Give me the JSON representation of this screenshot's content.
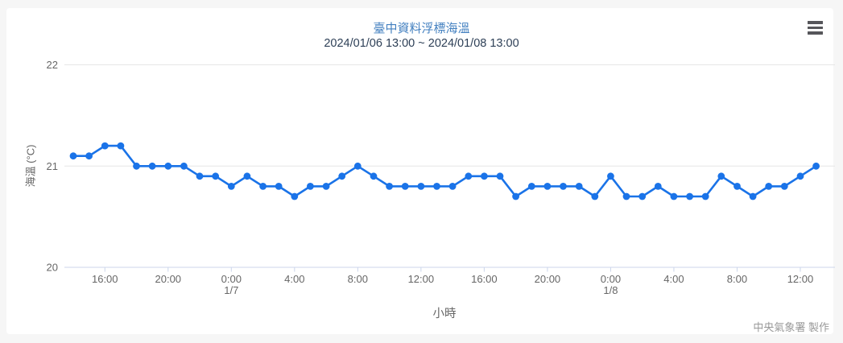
{
  "credits": "中央氣象署 製作",
  "colors": {
    "title": "#4380c0",
    "subtitle": "#2e4057",
    "line": "#1a73e8",
    "grid": "#e6e6e6",
    "axis_line": "#ccd6eb",
    "tick_label": "#666666",
    "credits_text": "#999999"
  },
  "icons": {
    "menu": "hamburger-icon"
  },
  "chart_data": {
    "type": "line",
    "title": "臺中資料浮標海溫",
    "subtitle": "2024/01/06 13:00 ~ 2024/01/08 13:00",
    "xlabel": "小時",
    "ylabel": "海溫 (°C)",
    "ylim": [
      20,
      22
    ],
    "yticks": [
      20,
      21,
      22
    ],
    "grid": true,
    "legend": "none",
    "line_color": "#1a73e8",
    "categories": [
      "1/6 14:00",
      "1/6 15:00",
      "1/6 16:00",
      "1/6 17:00",
      "1/6 18:00",
      "1/6 19:00",
      "1/6 20:00",
      "1/6 21:00",
      "1/6 22:00",
      "1/6 23:00",
      "1/7 0:00",
      "1/7 1:00",
      "1/7 2:00",
      "1/7 3:00",
      "1/7 4:00",
      "1/7 5:00",
      "1/7 6:00",
      "1/7 7:00",
      "1/7 8:00",
      "1/7 9:00",
      "1/7 10:00",
      "1/7 11:00",
      "1/7 12:00",
      "1/7 13:00",
      "1/7 14:00",
      "1/7 15:00",
      "1/7 16:00",
      "1/7 17:00",
      "1/7 18:00",
      "1/7 19:00",
      "1/7 20:00",
      "1/7 21:00",
      "1/7 22:00",
      "1/7 23:00",
      "1/8 0:00",
      "1/8 1:00",
      "1/8 2:00",
      "1/8 3:00",
      "1/8 4:00",
      "1/8 5:00",
      "1/8 6:00",
      "1/8 7:00",
      "1/8 8:00",
      "1/8 9:00",
      "1/8 10:00",
      "1/8 11:00",
      "1/8 12:00",
      "1/8 13:00"
    ],
    "values": [
      21.1,
      21.1,
      21.2,
      21.2,
      21.0,
      21.0,
      21.0,
      21.0,
      20.9,
      20.9,
      20.8,
      20.9,
      20.8,
      20.8,
      20.7,
      20.8,
      20.8,
      20.9,
      21.0,
      20.9,
      20.8,
      20.8,
      20.8,
      20.8,
      20.8,
      20.9,
      20.9,
      20.9,
      20.7,
      20.8,
      20.8,
      20.8,
      20.8,
      20.7,
      20.9,
      20.7,
      20.7,
      20.8,
      20.7,
      20.7,
      20.7,
      20.9,
      20.8,
      20.7,
      20.8,
      20.8,
      20.9,
      21.0
    ],
    "xticks": [
      {
        "index": 2,
        "label": "16:00"
      },
      {
        "index": 6,
        "label": "20:00"
      },
      {
        "index": 10,
        "label": "0:00",
        "day": "1/7"
      },
      {
        "index": 14,
        "label": "4:00"
      },
      {
        "index": 18,
        "label": "8:00"
      },
      {
        "index": 22,
        "label": "12:00"
      },
      {
        "index": 26,
        "label": "16:00"
      },
      {
        "index": 30,
        "label": "20:00"
      },
      {
        "index": 34,
        "label": "0:00",
        "day": "1/8"
      },
      {
        "index": 38,
        "label": "4:00"
      },
      {
        "index": 42,
        "label": "8:00"
      },
      {
        "index": 46,
        "label": "12:00"
      }
    ]
  }
}
